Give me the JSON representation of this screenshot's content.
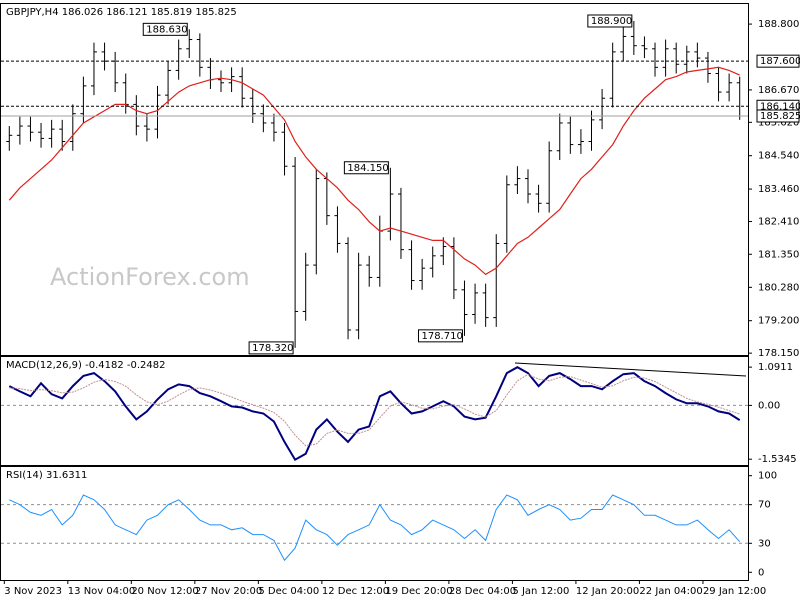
{
  "chart_data": [
    {
      "type": "ohlc",
      "title": "GBPJPY,H4 186.026 186.121 185.819 185.825",
      "watermark": "ActionForex.com",
      "categories": [
        "3 Nov 2023",
        null,
        null,
        null,
        null,
        null,
        "13 Nov 04:00",
        null,
        null,
        null,
        null,
        null,
        "20 Nov 12:00",
        null,
        null,
        null,
        null,
        null,
        "27 Nov 20:00",
        null,
        null,
        null,
        null,
        null,
        "5 Dec 04:00",
        null,
        null,
        null,
        null,
        null,
        "12 Dec 12:00",
        null,
        null,
        null,
        null,
        null,
        "19 Dec 20:00",
        null,
        null,
        null,
        null,
        null,
        "28 Dec 04:00",
        null,
        null,
        null,
        null,
        null,
        "5 Jan 12:00",
        null,
        null,
        null,
        null,
        null,
        "12 Jan 20:00",
        null,
        null,
        null,
        null,
        null,
        "22 Jan 04:00",
        null,
        null,
        null,
        null,
        null,
        "29 Jan 12:00",
        null,
        null,
        null
      ],
      "open": [
        185.0,
        185.2,
        185.5,
        185.3,
        185.1,
        185.4,
        185.0,
        185.9,
        186.8,
        187.9,
        187.6,
        186.9,
        186.2,
        185.5,
        185.4,
        186.5,
        187.3,
        188.0,
        188.3,
        187.4,
        187.0,
        186.9,
        187.1,
        186.4,
        185.9,
        185.6,
        185.3,
        184.2,
        179.5,
        181.0,
        183.8,
        182.6,
        181.7,
        178.9,
        181.0,
        180.6,
        182.1,
        183.3,
        181.5,
        180.5,
        180.9,
        181.3,
        181.6,
        180.2,
        179.4,
        180.1,
        179.3,
        181.7,
        183.6,
        183.8,
        183.3,
        183.0,
        184.7,
        185.6,
        184.9,
        185.0,
        185.7,
        186.4,
        187.9,
        188.4,
        188.1,
        188.0,
        187.4,
        188.0,
        187.5,
        187.9,
        187.7,
        187.2,
        186.6,
        186.9
      ],
      "high": [
        185.5,
        185.8,
        185.8,
        185.6,
        185.7,
        185.7,
        186.2,
        187.1,
        188.2,
        188.2,
        187.9,
        187.2,
        186.5,
        185.9,
        186.8,
        187.6,
        188.3,
        188.63,
        188.5,
        187.7,
        187.3,
        187.4,
        187.4,
        186.7,
        186.2,
        185.9,
        185.6,
        184.5,
        181.4,
        184.1,
        184.0,
        182.9,
        181.9,
        181.4,
        181.3,
        182.6,
        184.15,
        183.5,
        181.8,
        181.2,
        181.6,
        181.9,
        181.9,
        180.5,
        180.4,
        180.4,
        182.0,
        183.9,
        184.2,
        184.1,
        183.6,
        185.0,
        185.9,
        185.8,
        185.4,
        186.0,
        186.7,
        188.2,
        188.7,
        188.9,
        188.4,
        188.2,
        188.3,
        188.2,
        188.1,
        188.2,
        187.9,
        187.4,
        187.2,
        187.1
      ],
      "low": [
        184.7,
        184.9,
        185.0,
        184.8,
        184.8,
        184.7,
        184.7,
        185.6,
        186.5,
        187.3,
        186.6,
        185.9,
        185.2,
        185.0,
        185.1,
        186.2,
        187.0,
        187.7,
        187.1,
        186.7,
        186.6,
        186.6,
        186.1,
        185.6,
        185.3,
        185.0,
        183.9,
        178.32,
        179.2,
        180.7,
        182.3,
        181.4,
        178.6,
        178.6,
        180.3,
        180.3,
        181.8,
        181.2,
        180.2,
        180.2,
        180.6,
        181.0,
        179.9,
        178.71,
        179.1,
        179.0,
        179.0,
        181.4,
        183.3,
        183.0,
        182.7,
        182.7,
        184.4,
        184.6,
        184.6,
        184.7,
        185.4,
        186.1,
        187.6,
        187.8,
        187.7,
        187.1,
        187.1,
        187.2,
        187.2,
        187.4,
        186.9,
        186.3,
        186.3,
        185.7
      ],
      "close": [
        185.2,
        185.5,
        185.3,
        185.1,
        185.4,
        185.0,
        185.9,
        186.8,
        187.9,
        187.6,
        186.9,
        186.2,
        185.5,
        185.4,
        186.5,
        187.3,
        188.0,
        188.3,
        187.4,
        187.0,
        186.9,
        187.1,
        186.4,
        185.9,
        185.6,
        185.3,
        184.2,
        179.5,
        181.0,
        183.8,
        182.6,
        181.7,
        178.9,
        181.0,
        180.6,
        182.1,
        183.3,
        181.5,
        180.5,
        180.9,
        181.3,
        181.6,
        180.2,
        179.4,
        180.1,
        179.3,
        181.7,
        183.6,
        183.8,
        183.3,
        183.0,
        184.7,
        185.6,
        184.9,
        185.0,
        185.7,
        186.4,
        187.9,
        188.4,
        188.1,
        188.0,
        187.4,
        188.0,
        187.5,
        187.9,
        187.7,
        187.2,
        186.6,
        186.9,
        185.825
      ],
      "color": "#000000",
      "overlay": {
        "color": "#e0201b",
        "values": [
          183.1,
          183.5,
          183.8,
          184.1,
          184.4,
          184.8,
          185.2,
          185.6,
          185.8,
          186.0,
          186.2,
          186.2,
          186.0,
          185.9,
          186.0,
          186.3,
          186.6,
          186.8,
          186.9,
          187.0,
          187.05,
          187.0,
          186.9,
          186.7,
          186.5,
          186.1,
          185.7,
          185.0,
          184.5,
          184.1,
          183.8,
          183.5,
          183.1,
          182.8,
          182.4,
          182.1,
          182.2,
          182.1,
          182.0,
          181.9,
          181.8,
          181.8,
          181.5,
          181.2,
          181.0,
          180.7,
          180.9,
          181.3,
          181.7,
          181.9,
          182.2,
          182.5,
          182.8,
          183.3,
          183.8,
          184.1,
          184.5,
          184.9,
          185.5,
          186.0,
          186.4,
          186.7,
          187.0,
          187.1,
          187.25,
          187.3,
          187.35,
          187.4,
          187.3,
          187.15
        ]
      },
      "levels": [
        {
          "value": 187.6,
          "label": "187.600"
        },
        {
          "value": 186.14,
          "label": "186.140"
        }
      ],
      "last": {
        "value": 185.825,
        "label": "185.825"
      },
      "annotations": [
        {
          "value": 188.63,
          "label": "188.630"
        },
        {
          "value": 184.15,
          "label": "184.150"
        },
        {
          "value": 178.32,
          "label": "178.320"
        },
        {
          "value": 178.71,
          "label": "178.710"
        },
        {
          "value": 188.9,
          "label": "188.900"
        }
      ],
      "ylim": [
        178.09,
        189.45
      ],
      "yticks": [
        {
          "value": 188.8,
          "label": "188.800"
        },
        {
          "value": 186.67,
          "label": "186.670"
        },
        {
          "value": 185.62,
          "label": "185.620"
        },
        {
          "value": 184.54,
          "label": "184.540"
        },
        {
          "value": 183.46,
          "label": "183.460"
        },
        {
          "value": 182.41,
          "label": "182.410"
        },
        {
          "value": 181.35,
          "label": "181.350"
        },
        {
          "value": 180.28,
          "label": "180.280"
        },
        {
          "value": 179.2,
          "label": "179.200"
        },
        {
          "value": 178.15,
          "label": "178.150"
        }
      ]
    },
    {
      "type": "macd",
      "title": "MACD(12,26,9) -0.4182 -0.2482",
      "series": [
        {
          "color": "#000080",
          "values": [
            0.55,
            0.4,
            0.26,
            0.63,
            0.32,
            0.2,
            0.55,
            0.84,
            0.92,
            0.69,
            0.4,
            -0.03,
            -0.4,
            -0.17,
            0.17,
            0.46,
            0.6,
            0.55,
            0.35,
            0.26,
            0.12,
            -0.03,
            -0.06,
            -0.17,
            -0.23,
            -0.46,
            -1.04,
            -1.55,
            -1.38,
            -0.69,
            -0.4,
            -0.75,
            -1.04,
            -0.69,
            -0.6,
            0.26,
            0.4,
            0.06,
            -0.23,
            -0.17,
            -0.03,
            0.12,
            -0.03,
            -0.32,
            -0.4,
            -0.35,
            0.26,
            0.92,
            1.09,
            0.92,
            0.55,
            0.84,
            0.92,
            0.75,
            0.55,
            0.55,
            0.46,
            0.69,
            0.89,
            0.92,
            0.69,
            0.55,
            0.35,
            0.17,
            0.06,
            0.06,
            -0.03,
            -0.17,
            -0.23,
            -0.4182
          ]
        },
        {
          "color": "#c09090",
          "values": [
            0.5,
            0.48,
            0.42,
            0.45,
            0.42,
            0.36,
            0.38,
            0.5,
            0.66,
            0.74,
            0.68,
            0.55,
            0.3,
            0.1,
            0.02,
            0.12,
            0.3,
            0.45,
            0.5,
            0.44,
            0.35,
            0.24,
            0.12,
            0.02,
            -0.08,
            -0.2,
            -0.45,
            -0.85,
            -1.15,
            -1.1,
            -0.8,
            -0.7,
            -0.8,
            -0.8,
            -0.7,
            -0.35,
            -0.02,
            0.1,
            0.02,
            -0.08,
            -0.1,
            -0.02,
            0.02,
            -0.1,
            -0.25,
            -0.33,
            -0.15,
            0.3,
            0.7,
            0.88,
            0.75,
            0.7,
            0.8,
            0.82,
            0.72,
            0.62,
            0.52,
            0.56,
            0.7,
            0.8,
            0.78,
            0.68,
            0.52,
            0.36,
            0.2,
            0.1,
            0.03,
            -0.05,
            -0.15,
            -0.2482
          ]
        }
      ],
      "levels": [
        0
      ],
      "ylim": [
        -1.7,
        1.38
      ],
      "yticks": [
        1.0911,
        {
          "value": 0,
          "label": "0.00"
        },
        -1.5345
      ]
    },
    {
      "type": "line",
      "title": "RSI(14) 31.6311",
      "color": "#1e90ff",
      "values": [
        75,
        70,
        62,
        59,
        65,
        49,
        59,
        80,
        75,
        65,
        49,
        44,
        39,
        54,
        59,
        70,
        75,
        65,
        54,
        49,
        49,
        44,
        46,
        39,
        39,
        33,
        12.5,
        25,
        54,
        44,
        39,
        28,
        39,
        44,
        49,
        70,
        54,
        49,
        39,
        44,
        54,
        49,
        44,
        35,
        44,
        33,
        65,
        80,
        75,
        59,
        65,
        70,
        65,
        54,
        56,
        65,
        65,
        80,
        75,
        70,
        59,
        59,
        54,
        49,
        49,
        54,
        44,
        35,
        44,
        31.6311
      ],
      "levels": [
        70,
        30
      ],
      "ylim": [
        -8,
        109
      ],
      "yticks": [
        100,
        70,
        30,
        0
      ]
    }
  ]
}
